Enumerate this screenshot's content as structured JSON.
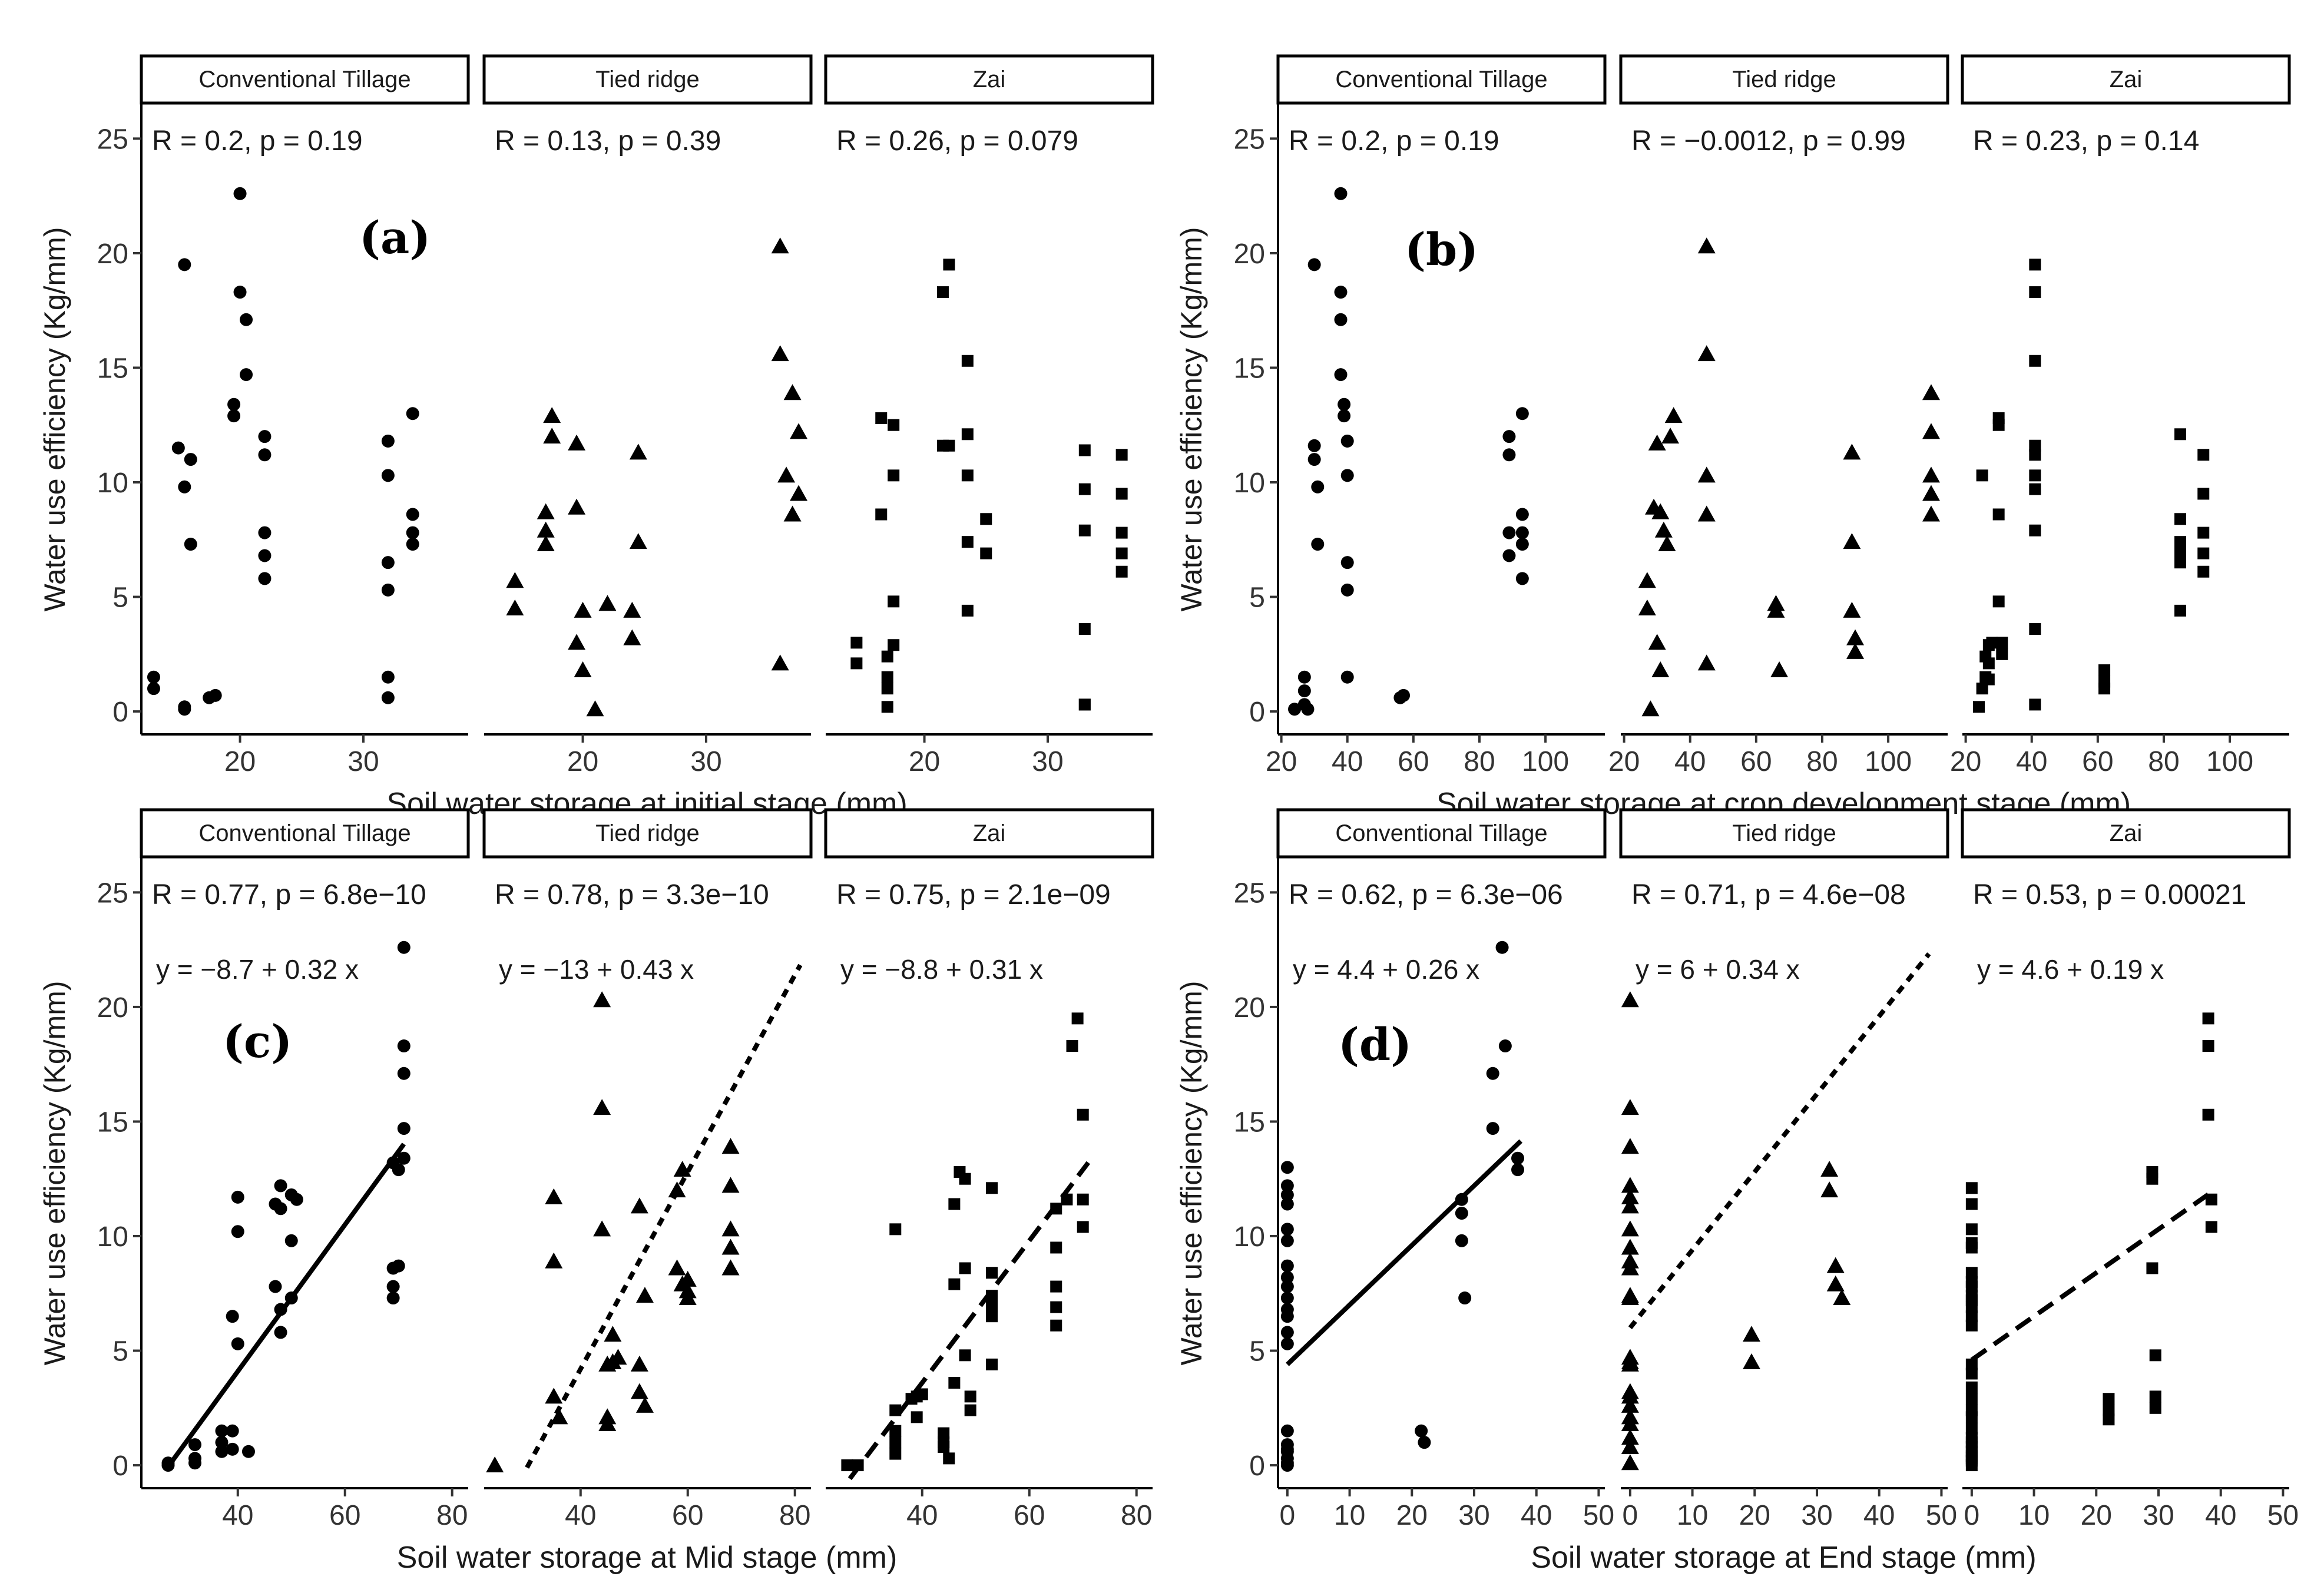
{
  "chart_data": [
    {
      "type": "scatter",
      "panel_label": "(a)",
      "xlabel": "Soil water storage at initial stage (mm)",
      "ylabel": "Water use efficiency (Kg/mm)",
      "ylim": [
        -1,
        26.5
      ],
      "yticks": [
        0,
        5,
        10,
        15,
        20,
        25
      ],
      "xlim": [
        12,
        38.5
      ],
      "xticks": [
        20,
        30
      ],
      "facets": [
        {
          "name": "Conventional Tillage",
          "marker": "circle",
          "stat_label": "R = 0.2, p = 0.19",
          "equation": null,
          "line_style": null,
          "line_x": null,
          "x": [
            13,
            13,
            15,
            15.5,
            15.5,
            15.5,
            15.5,
            16,
            16,
            17.5,
            18,
            19.5,
            19.5,
            20,
            20,
            20.5,
            20.5,
            22,
            22,
            22,
            22,
            22,
            32,
            32,
            32,
            32,
            32,
            32,
            34,
            34,
            34,
            34
          ],
          "y": [
            1,
            1.5,
            11.5,
            9.8,
            19.5,
            0.1,
            0.2,
            11,
            7.3,
            0.6,
            0.7,
            13.4,
            12.9,
            22.6,
            18.3,
            17.1,
            14.7,
            12,
            11.2,
            7.8,
            6.8,
            5.8,
            11.8,
            10.3,
            6.5,
            5.3,
            1.5,
            0.6,
            13,
            8.6,
            7.8,
            7.3
          ]
        },
        {
          "name": "Tied ridge",
          "marker": "triangle",
          "stat_label": "R = 0.13, p = 0.39",
          "equation": null,
          "line_style": null,
          "line_x": null,
          "x": [
            14.5,
            14.5,
            17,
            17,
            17,
            17.5,
            17.5,
            19.5,
            19.5,
            19.5,
            20,
            20,
            21,
            22,
            24,
            24,
            24.5,
            24.5,
            36,
            36,
            36,
            36.5,
            37,
            37,
            37.5,
            37.5
          ],
          "y": [
            5.7,
            4.5,
            8.7,
            7.9,
            7.3,
            12.9,
            12,
            11.7,
            8.9,
            3,
            4.4,
            1.8,
            0.1,
            4.7,
            4.4,
            3.2,
            11.3,
            7.4,
            20.3,
            15.6,
            2.1,
            10.3,
            8.6,
            13.9,
            12.2,
            9.5
          ]
        },
        {
          "name": "Zai",
          "marker": "square",
          "stat_label": "R = 0.26, p = 0.079",
          "equation": null,
          "line_style": null,
          "line_x": null,
          "x": [
            14.5,
            14.5,
            16.5,
            16.5,
            17,
            17,
            17,
            17,
            17.5,
            17.5,
            17.5,
            17.5,
            21.5,
            21.5,
            22,
            22,
            23.5,
            23.5,
            23.5,
            23.5,
            23.5,
            25,
            25,
            33,
            33,
            33,
            33,
            33,
            33,
            36,
            36,
            36,
            36,
            36
          ],
          "y": [
            3,
            2.1,
            12.8,
            8.6,
            2.4,
            1.5,
            1,
            0.2,
            12.5,
            10.3,
            4.8,
            2.9,
            18.3,
            11.6,
            19.5,
            11.6,
            15.3,
            12.1,
            10.3,
            7.4,
            4.4,
            8.4,
            6.9,
            11.4,
            9.7,
            7.9,
            3.6,
            0.3,
            0.3,
            11.2,
            9.5,
            7.8,
            6.9,
            6.1
          ]
        }
      ]
    },
    {
      "type": "scatter",
      "panel_label": "(b)",
      "xlabel": "Soil water storage at crop development stage (mm)",
      "ylabel": "Water use efficiency (Kg/mm)",
      "ylim": [
        -1,
        26.5
      ],
      "yticks": [
        0,
        5,
        10,
        15,
        20,
        25
      ],
      "xlim": [
        19,
        118
      ],
      "xticks": [
        20,
        40,
        60,
        80,
        100
      ],
      "facets": [
        {
          "name": "Conventional Tillage",
          "marker": "circle",
          "stat_label": "R = 0.2, p = 0.19",
          "equation": null,
          "line_style": null,
          "line_x": null,
          "x": [
            24,
            27,
            27,
            27,
            28,
            30,
            30,
            30,
            31,
            31,
            38,
            38,
            38,
            38,
            39,
            39,
            40,
            40,
            40,
            40,
            40,
            56,
            57,
            89,
            89,
            89,
            89,
            93,
            93,
            93,
            93,
            93
          ],
          "y": [
            0.1,
            1.5,
            0.9,
            0.3,
            0.1,
            19.5,
            11.6,
            11,
            9.8,
            7.3,
            22.6,
            18.3,
            17.1,
            14.7,
            13.4,
            12.9,
            11.8,
            10.3,
            6.5,
            5.3,
            1.5,
            0.6,
            0.7,
            12,
            11.2,
            7.8,
            6.8,
            13,
            8.6,
            7.8,
            7.3,
            5.8
          ]
        },
        {
          "name": "Tied ridge",
          "marker": "triangle",
          "stat_label": "R = −0.0012, p = 0.99",
          "equation": null,
          "line_style": null,
          "line_x": null,
          "x": [
            27,
            27,
            28,
            29,
            30,
            30,
            31,
            31,
            32,
            33,
            34,
            35,
            45,
            45,
            45,
            45,
            45,
            66,
            66,
            67,
            89,
            89,
            89,
            90,
            90,
            113,
            113,
            113,
            113,
            113
          ],
          "y": [
            5.7,
            4.5,
            0.1,
            8.9,
            3,
            11.7,
            1.8,
            8.7,
            7.9,
            7.3,
            12,
            12.9,
            20.3,
            15.6,
            10.3,
            8.6,
            2.1,
            4.7,
            4.4,
            1.8,
            11.3,
            7.4,
            4.4,
            3.2,
            2.6,
            13.9,
            12.2,
            10.3,
            9.5,
            8.6
          ]
        },
        {
          "name": "Zai",
          "marker": "square",
          "stat_label": "R = 0.23, p = 0.14",
          "equation": null,
          "line_style": null,
          "line_x": null,
          "x": [
            24,
            25,
            25,
            26,
            26,
            27,
            27,
            27,
            28,
            30,
            30,
            30,
            30,
            31,
            31,
            41,
            41,
            41,
            41,
            41,
            41,
            41,
            41,
            41,
            41,
            62,
            62,
            62,
            85,
            85,
            85,
            85,
            85,
            85,
            92,
            92,
            92,
            92,
            92
          ],
          "y": [
            0.2,
            10.3,
            1,
            1.5,
            2.4,
            2.9,
            2.1,
            1.4,
            3,
            12.8,
            12.5,
            8.6,
            4.8,
            3,
            2.5,
            19.5,
            18.3,
            15.3,
            11.6,
            11.2,
            10.3,
            9.7,
            7.9,
            3.6,
            0.3,
            1.8,
            1.3,
            1,
            12.1,
            8.4,
            7.4,
            6.9,
            6.5,
            4.4,
            11.2,
            9.5,
            7.8,
            6.9,
            6.1
          ]
        }
      ]
    },
    {
      "type": "scatter",
      "panel_label": "(c)",
      "xlabel": "Soil water storage at Mid stage (mm)",
      "ylabel": "Water use efficiency (Kg/mm)",
      "ylim": [
        -1,
        26.5
      ],
      "yticks": [
        0,
        5,
        10,
        15,
        20,
        25
      ],
      "xlim": [
        22,
        83
      ],
      "xticks": [
        40,
        60,
        80
      ],
      "facets": [
        {
          "name": "Conventional Tillage",
          "marker": "circle",
          "stat_label": "R = 0.77, p = 6.8e−10",
          "equation": "y = −8.7 + 0.32 x",
          "line_style": "solid",
          "line_x": [
            26.5,
            71
          ],
          "x": [
            27,
            27,
            32,
            32,
            32,
            37,
            37,
            37,
            39,
            39,
            39,
            40,
            40,
            40,
            42,
            47,
            47,
            48,
            48,
            48,
            48,
            50,
            50,
            50,
            51,
            69,
            69,
            69,
            69,
            70,
            70,
            71,
            71,
            71,
            71,
            71
          ],
          "y": [
            0.1,
            0,
            0.9,
            0.3,
            0.1,
            1.5,
            1,
            0.6,
            1.5,
            6.5,
            0.7,
            11.7,
            10.2,
            5.3,
            0.6,
            11.4,
            7.8,
            12.2,
            11.2,
            6.8,
            5.8,
            11.8,
            9.8,
            7.3,
            11.6,
            13.2,
            8.6,
            7.8,
            7.3,
            12.9,
            8.7,
            22.6,
            18.3,
            17.1,
            14.7,
            13.4
          ]
        },
        {
          "name": "Tied ridge",
          "marker": "triangle",
          "stat_label": "R = 0.78, p = 3.3e−10",
          "equation": "y = −13 + 0.43 x",
          "line_style": "dotted",
          "line_x": [
            30,
            81
          ],
          "x": [
            24,
            35,
            35,
            35,
            36,
            44,
            44,
            44,
            45,
            45,
            45,
            46,
            46,
            47,
            51,
            51,
            51,
            52,
            52,
            58,
            58,
            59,
            59,
            60,
            60,
            60,
            68,
            68,
            68,
            68,
            68
          ],
          "y": [
            0,
            11.7,
            8.9,
            3,
            2.1,
            20.3,
            15.6,
            10.3,
            4.4,
            1.8,
            2.1,
            5.7,
            4.5,
            4.7,
            11.3,
            4.4,
            3.2,
            7.4,
            2.6,
            12,
            8.6,
            12.9,
            7.9,
            8.1,
            7.6,
            7.3,
            13.9,
            12.2,
            10.3,
            9.5,
            8.6
          ]
        },
        {
          "name": "Zai",
          "marker": "square",
          "stat_label": "R = 0.75, p = 2.1e−09",
          "equation": "y = −8.8 + 0.31 x",
          "line_style": "dashed",
          "line_x": [
            26.5,
            71
          ],
          "x": [
            26,
            28,
            35,
            35,
            35,
            35,
            35,
            38,
            39,
            39,
            40,
            44,
            44,
            44,
            45,
            46,
            46,
            46,
            47,
            48,
            48,
            48,
            49,
            49,
            53,
            53,
            53,
            53,
            53,
            53,
            65,
            65,
            65,
            65,
            65,
            67,
            68,
            69,
            70,
            70,
            70
          ],
          "y": [
            0,
            0,
            10.3,
            2.4,
            1.5,
            1,
            0.5,
            2.9,
            2.1,
            3,
            3.1,
            1.4,
            1,
            0.8,
            0.3,
            11.4,
            7.9,
            3.6,
            12.8,
            12.5,
            8.6,
            4.8,
            3,
            2.4,
            12.1,
            8.4,
            7.4,
            6.9,
            6.5,
            4.4,
            11.2,
            9.5,
            7.8,
            6.9,
            6.1,
            11.6,
            18.3,
            19.5,
            15.3,
            11.6,
            10.4
          ]
        }
      ]
    },
    {
      "type": "scatter",
      "panel_label": "(d)",
      "xlabel": "Soil water storage at End stage (mm)",
      "ylabel": "Water use efficiency (Kg/mm)",
      "ylim": [
        -1,
        26.5
      ],
      "yticks": [
        0,
        5,
        10,
        15,
        20,
        25
      ],
      "xlim": [
        -1.5,
        51
      ],
      "xticks": [
        0,
        10,
        20,
        30,
        40,
        50
      ],
      "facets": [
        {
          "name": "Conventional Tillage",
          "marker": "circle",
          "stat_label": "R = 0.62, p = 6.3e−06",
          "equation": "y = 4.4 + 0.26 x",
          "line_style": "solid",
          "line_x": [
            0,
            37.5
          ],
          "x": [
            0,
            0,
            0,
            0,
            0,
            0,
            0,
            0,
            0,
            0,
            0,
            0,
            0,
            0,
            0,
            0,
            0,
            0,
            0,
            0,
            0,
            21.5,
            22,
            28,
            28,
            28,
            28.5,
            33,
            33,
            34.5,
            35,
            37,
            37
          ],
          "y": [
            13,
            12.2,
            11.8,
            11.4,
            10.3,
            9.8,
            8.7,
            8.2,
            7.8,
            7.3,
            6.8,
            6.5,
            5.8,
            5.3,
            1.5,
            0.9,
            0.7,
            0.6,
            0.3,
            0.1,
            0,
            1.5,
            1,
            11.6,
            11,
            9.8,
            7.3,
            17.1,
            14.7,
            22.6,
            18.3,
            13.4,
            12.9
          ]
        },
        {
          "name": "Tied ridge",
          "marker": "triangle",
          "stat_label": "R = 0.71, p = 4.6e−08",
          "equation": "y = 6 + 0.34 x",
          "line_style": "dotted",
          "line_x": [
            0,
            48
          ],
          "x": [
            0,
            0,
            0,
            0,
            0,
            0,
            0,
            0,
            0,
            0,
            0,
            0,
            0,
            0,
            0,
            0,
            0,
            0,
            0,
            0,
            0,
            0,
            0,
            19.5,
            19.5,
            32,
            32,
            33,
            33,
            34
          ],
          "y": [
            20.3,
            15.6,
            13.9,
            12.2,
            11.7,
            11.3,
            10.3,
            9.5,
            8.9,
            8.6,
            7.4,
            7.3,
            4.7,
            4.5,
            4.4,
            3.2,
            3,
            2.6,
            2.1,
            1.8,
            1.2,
            0.8,
            0.1,
            5.7,
            4.5,
            12.9,
            12,
            8.7,
            7.9,
            7.3
          ]
        },
        {
          "name": "Zai",
          "marker": "square",
          "stat_label": "R = 0.53, p = 0.00021",
          "equation": "y = 4.6 + 0.19 x",
          "line_style": "dashed",
          "line_x": [
            0,
            38.5
          ],
          "x": [
            0,
            0,
            0,
            0,
            0,
            0,
            0,
            0,
            0,
            0,
            0,
            0,
            0,
            0,
            0,
            0,
            0,
            0,
            0,
            0,
            0,
            0,
            0,
            0,
            0,
            0,
            0,
            0,
            22,
            22,
            22,
            29,
            29,
            29,
            29.5,
            29.5,
            29.5,
            38,
            38,
            38,
            38.5,
            38.5
          ],
          "y": [
            12.1,
            11.4,
            10.3,
            9.7,
            9.5,
            8.4,
            8,
            7.8,
            7.4,
            7.2,
            6.9,
            6.5,
            6.1,
            4.4,
            4,
            3.4,
            2.9,
            2.4,
            2.1,
            1.6,
            1.2,
            1,
            0.8,
            0.6,
            0.4,
            0.3,
            0.2,
            0,
            2.9,
            2.4,
            2,
            12.8,
            12.5,
            8.6,
            4.8,
            3,
            2.5,
            19.5,
            18.3,
            15.3,
            11.6,
            10.4
          ]
        }
      ]
    }
  ]
}
